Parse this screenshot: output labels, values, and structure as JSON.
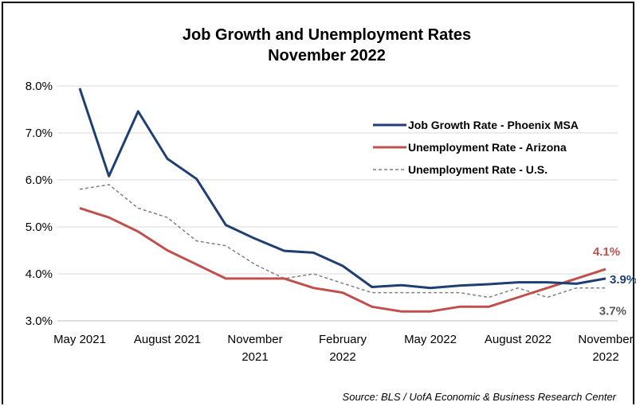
{
  "chart_data": {
    "type": "line",
    "title": "Job Growth and Unemployment Rates",
    "subtitle": "November 2022",
    "ylim": [
      3.0,
      8.0
    ],
    "yticks": [
      "3.0%",
      "4.0%",
      "5.0%",
      "6.0%",
      "7.0%",
      "8.0%"
    ],
    "yticks_values": [
      3.0,
      4.0,
      5.0,
      6.0,
      7.0,
      8.0
    ],
    "grid": "horizontal",
    "legend_position": "top-right",
    "x": [
      "May 2021",
      "Jun 2021",
      "Jul 2021",
      "Aug 2021",
      "Sep 2021",
      "Oct 2021",
      "Nov 2021",
      "Dec 2021",
      "Jan 2022",
      "Feb 2022",
      "Mar 2022",
      "Apr 2022",
      "May 2022",
      "Jun 2022",
      "Jul 2022",
      "Aug 2022",
      "Sep 2022",
      "Oct 2022",
      "Nov 2022"
    ],
    "xtick_labels": [
      {
        "index": 0,
        "lines": [
          "May 2021"
        ]
      },
      {
        "index": 3,
        "lines": [
          "August 2021"
        ]
      },
      {
        "index": 6,
        "lines": [
          "November",
          "2021"
        ]
      },
      {
        "index": 9,
        "lines": [
          "February",
          "2022"
        ]
      },
      {
        "index": 12,
        "lines": [
          "May 2022"
        ]
      },
      {
        "index": 15,
        "lines": [
          "August 2022"
        ]
      },
      {
        "index": 18,
        "lines": [
          "November",
          "2022"
        ]
      }
    ],
    "series": [
      {
        "name": "Job Growth Rate - Phoenix MSA",
        "color": "#1f3f73",
        "style": "solid",
        "values": [
          7.95,
          6.08,
          7.46,
          6.45,
          6.02,
          5.04,
          4.75,
          4.49,
          4.45,
          4.17,
          3.72,
          3.76,
          3.7,
          3.75,
          3.78,
          3.82,
          3.82,
          3.79,
          3.9
        ],
        "end_label": "3.9%"
      },
      {
        "name": "Unemployment Rate - Arizona",
        "color": "#c0504d",
        "style": "solid",
        "values": [
          5.4,
          5.2,
          4.9,
          4.5,
          4.2,
          3.9,
          3.9,
          3.9,
          3.7,
          3.6,
          3.3,
          3.2,
          3.2,
          3.3,
          3.3,
          3.5,
          3.7,
          3.9,
          4.1
        ],
        "end_label": "4.1%"
      },
      {
        "name": "Unemployment Rate - U.S.",
        "color": "#808080",
        "style": "dashed",
        "values": [
          5.8,
          5.9,
          5.4,
          5.2,
          4.7,
          4.6,
          4.2,
          3.9,
          4.0,
          3.8,
          3.6,
          3.6,
          3.6,
          3.6,
          3.5,
          3.7,
          3.5,
          3.7,
          3.7
        ],
        "end_label": "3.7%"
      }
    ],
    "source": "Source: BLS / UofA Economic & Business Research Center"
  }
}
